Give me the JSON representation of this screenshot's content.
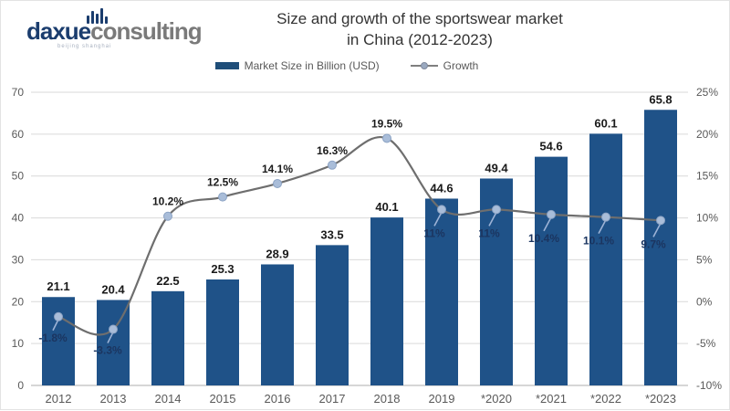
{
  "header": {
    "logo": {
      "part1": "daxue",
      "part2": "consulting",
      "tagline": "beijing shanghai"
    },
    "title_line1": "Size and growth of the sportswear market",
    "title_line2": "in China (2012-2023)"
  },
  "legend": {
    "market_size_label": "Market Size in Billion (USD)",
    "growth_label": "Growth"
  },
  "colors": {
    "bar_fill": "#1f5288",
    "line_stroke": "#6e6e6e",
    "marker_fill": "#a9bdd9",
    "marker_stroke": "#8ca3c4",
    "callout_stroke": "#9db3d6",
    "gridline": "#d9d9d9",
    "axis_line": "#c9c9c9",
    "axis_text": "#595959",
    "logo_navy": "#1b3d6e",
    "logo_gray": "#7a7a7a"
  },
  "chart_data": {
    "type": "bar",
    "categories": [
      "2012",
      "2013",
      "2014",
      "2015",
      "2016",
      "2017",
      "2018",
      "2019",
      "*2020",
      "*2021",
      "*2022",
      "*2023"
    ],
    "title": "Size and growth of the sportswear market in China (2012-2023)",
    "series": [
      {
        "name": "Market Size in Billion (USD)",
        "type": "bar",
        "axis": "left",
        "values": [
          21.1,
          20.4,
          22.5,
          25.3,
          28.9,
          33.5,
          40.1,
          44.6,
          49.4,
          54.6,
          60.1,
          65.8
        ],
        "labels": [
          "21.1",
          "20.4",
          "22.5",
          "25.3",
          "28.9",
          "33.5",
          "40.1",
          "44.6",
          "49.4",
          "54.6",
          "60.1",
          "65.8"
        ]
      },
      {
        "name": "Growth",
        "type": "line",
        "axis": "right",
        "values": [
          -1.8,
          -3.3,
          10.2,
          12.5,
          14.1,
          16.3,
          19.5,
          11,
          11,
          10.4,
          10.1,
          9.7
        ],
        "labels": [
          "-1.8%",
          "-3.3%",
          "10.2%",
          "12.5%",
          "14.1%",
          "16.3%",
          "19.5%",
          "11%",
          "11%",
          "10.4%",
          "10.1%",
          "9.7%"
        ],
        "label_placement": [
          "callout",
          "callout",
          "above",
          "above",
          "above",
          "above",
          "above",
          "inbar",
          "inbar",
          "inbar",
          "inbar",
          "inbar"
        ]
      }
    ],
    "left_axis": {
      "min": 0,
      "max": 70,
      "tick_step": 10,
      "ticks": [
        "0",
        "10",
        "20",
        "30",
        "40",
        "50",
        "60",
        "70"
      ]
    },
    "right_axis": {
      "min": -10,
      "max": 25,
      "tick_step": 5,
      "ticks": [
        "-10%",
        "-5%",
        "0%",
        "5%",
        "10%",
        "15%",
        "20%",
        "25%"
      ]
    },
    "grid": true,
    "legend_position": "top"
  }
}
